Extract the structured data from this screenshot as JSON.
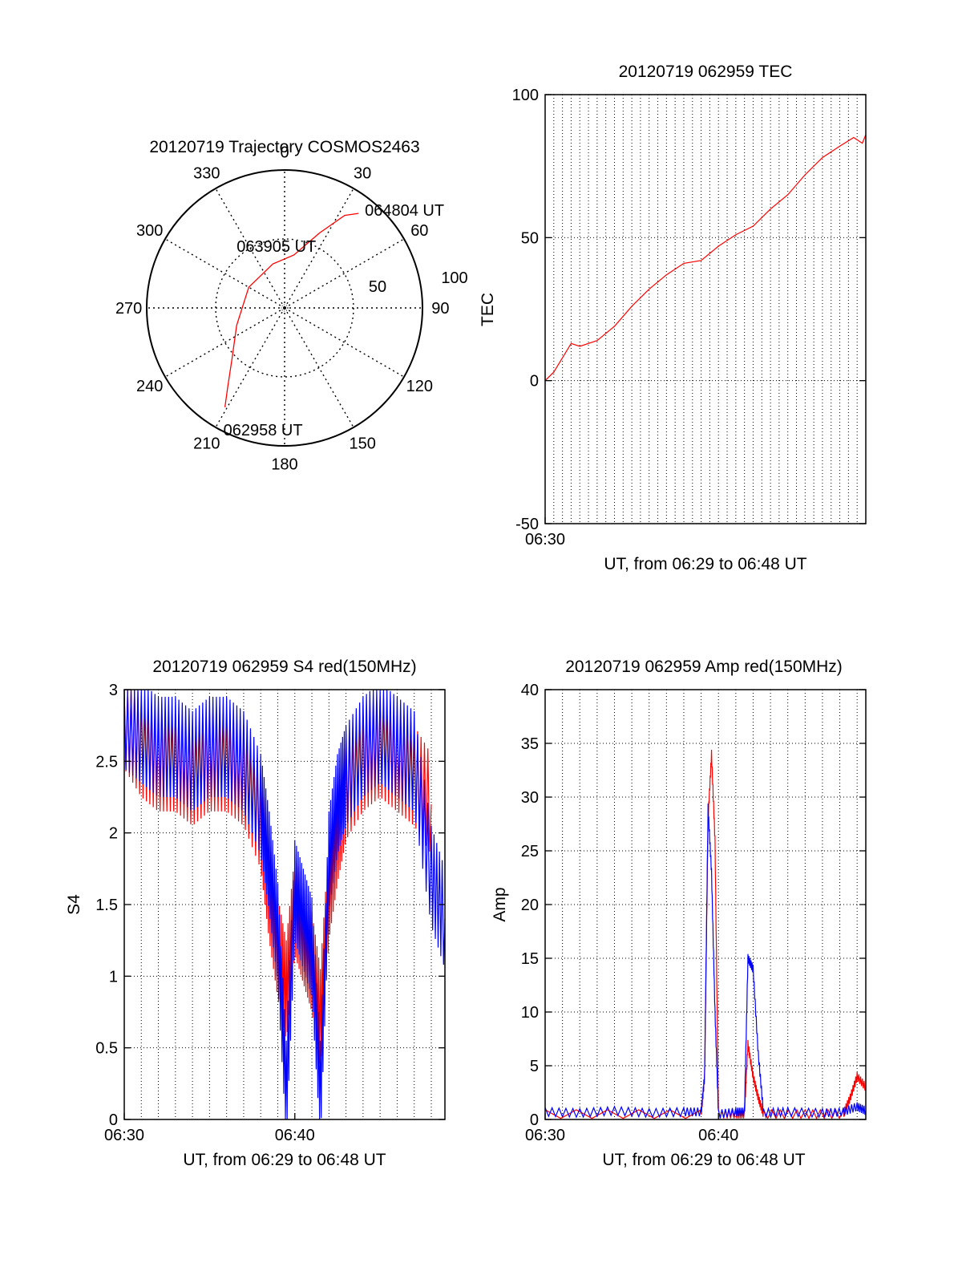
{
  "colors": {
    "red": "#ff0000",
    "blue": "#0000ff",
    "axis": "#000000",
    "grid": "#000000"
  },
  "chart_data": [
    {
      "type": "polar",
      "title": "20120719 Trajectory COSMOS2463",
      "angle_labels": [
        "0",
        "30",
        "60",
        "90",
        "120",
        "150",
        "180",
        "210",
        "240",
        "270",
        "300",
        "330"
      ],
      "radial_labels": [
        "50",
        "100"
      ],
      "r_max": 100,
      "grid": true,
      "series": [
        {
          "color": "#ff0000",
          "points": [
            {
              "az": 211,
              "r": 84
            },
            {
              "az": 216,
              "r": 70
            },
            {
              "az": 226,
              "r": 53
            },
            {
              "az": 250,
              "r": 37
            },
            {
              "az": 300,
              "r": 30
            },
            {
              "az": 345,
              "r": 33
            },
            {
              "az": 10,
              "r": 39
            },
            {
              "az": 25,
              "r": 60
            },
            {
              "az": 33,
              "r": 80
            },
            {
              "az": 38,
              "r": 87
            }
          ]
        }
      ],
      "annotations": [
        {
          "text": "064804 UT",
          "az": 38,
          "r": 87
        },
        {
          "text": "063905 UT",
          "az": 345,
          "r": 33
        },
        {
          "text": "062958 UT",
          "az": 211,
          "r": 84
        }
      ]
    },
    {
      "type": "line",
      "title": "20120719 062959 TEC",
      "xlabel": "UT, from 06:29 to 06:48 UT",
      "ylabel": "TEC",
      "xlim": [
        0,
        18.5
      ],
      "ylim": [
        -50,
        100
      ],
      "xticks": [
        {
          "x": 0,
          "label": "06:30"
        }
      ],
      "yticks": [
        -50,
        0,
        50,
        100
      ],
      "x_minor_grid_step": 0.5,
      "grid": true,
      "series": [
        {
          "color": "#ff0000",
          "x": [
            0,
            0.5,
            1.0,
            1.5,
            2.0,
            3.0,
            4.0,
            5.0,
            6.0,
            7.0,
            8.0,
            9.0,
            10.0,
            11.0,
            12.0,
            13.0,
            14.0,
            15.0,
            16.0,
            17.0,
            17.8,
            18.3,
            18.5
          ],
          "y": [
            0,
            3,
            8,
            13,
            12,
            14,
            19,
            26,
            32,
            37,
            41,
            42,
            47,
            51,
            54,
            60,
            65,
            72,
            78,
            82,
            85,
            83,
            86
          ]
        }
      ]
    },
    {
      "type": "line",
      "title": "20120719 062959 S4 red(150MHz)",
      "xlabel": "UT, from 06:29 to 06:48 UT",
      "ylabel": "S4",
      "xlim": [
        0,
        18.8
      ],
      "ylim": [
        0,
        3
      ],
      "xticks": [
        {
          "x": 0,
          "label": "06:30"
        },
        {
          "x": 10,
          "label": "06:40"
        }
      ],
      "yticks": [
        0,
        0.5,
        1,
        1.5,
        2,
        2.5,
        3
      ],
      "ytick_labels": [
        "0",
        "0.5",
        "1",
        "1.5",
        "2",
        "2.5",
        "3"
      ],
      "x_minor_grid_step": 1,
      "grid": true,
      "series": [
        {
          "color": "#ff0000",
          "x": [
            0,
            1,
            2,
            3,
            4,
            5,
            6,
            7,
            8,
            8.5,
            9,
            9.5,
            10,
            10.5,
            11,
            11.5,
            12,
            12.5,
            13,
            14,
            15,
            16,
            17,
            18
          ],
          "y": [
            2.8,
            2.6,
            2.5,
            2.5,
            2.4,
            2.5,
            2.5,
            2.4,
            2.1,
            1.6,
            1.2,
            0.9,
            1.5,
            1.3,
            1.1,
            0.7,
            1.6,
            2.0,
            2.3,
            2.5,
            2.6,
            2.5,
            2.4,
            2.2
          ]
        },
        {
          "color": "#0000ff",
          "x": [
            0,
            1,
            2,
            3,
            4,
            5,
            6,
            7,
            8,
            8.5,
            9,
            9.5,
            10,
            10.5,
            11,
            11.5,
            12,
            12.5,
            13,
            14,
            15,
            16,
            17,
            18,
            18.8
          ],
          "y": [
            2.8,
            2.7,
            2.6,
            2.6,
            2.5,
            2.6,
            2.6,
            2.5,
            2.2,
            1.8,
            1.3,
            0.2,
            1.6,
            1.4,
            1.2,
            0.2,
            1.8,
            2.2,
            2.4,
            2.6,
            2.7,
            2.6,
            2.5,
            1.7,
            1.4
          ]
        }
      ]
    },
    {
      "type": "line",
      "title": "20120719 062959 Amp red(150MHz)",
      "xlabel": "UT, from 06:29 to 06:48 UT",
      "ylabel": "Amp",
      "xlim": [
        0,
        18.5
      ],
      "ylim": [
        0,
        40
      ],
      "xticks": [
        {
          "x": 0,
          "label": "06:30"
        },
        {
          "x": 10,
          "label": "06:40"
        }
      ],
      "yticks": [
        0,
        5,
        10,
        15,
        20,
        25,
        30,
        35,
        40
      ],
      "x_minor_grid_step": 1,
      "grid": true,
      "series": [
        {
          "color": "#ff0000",
          "x": [
            0,
            9.0,
            9.2,
            9.4,
            9.6,
            9.8,
            10.0,
            11.0,
            11.5,
            11.7,
            12.0,
            12.3,
            12.6,
            15,
            17.2,
            17.6,
            18.0,
            18.5
          ],
          "y": [
            0.5,
            0.5,
            4,
            28,
            34,
            26,
            0.5,
            0.5,
            0.5,
            7,
            4,
            2,
            0.5,
            0.5,
            0.5,
            2,
            4,
            3
          ]
        },
        {
          "color": "#0000ff",
          "x": [
            0,
            2,
            4,
            6,
            8,
            9.0,
            9.2,
            9.4,
            9.6,
            9.8,
            10.0,
            11.0,
            11.5,
            11.7,
            12.0,
            12.3,
            12.6,
            14,
            16,
            17.2,
            18.0,
            18.5
          ],
          "y": [
            0.7,
            0.6,
            0.8,
            0.6,
            0.7,
            0.7,
            4,
            29,
            23,
            10,
            0.5,
            0.7,
            0.7,
            15,
            14,
            6,
            0.6,
            0.7,
            0.6,
            0.7,
            1.2,
            0.8
          ]
        }
      ]
    }
  ]
}
